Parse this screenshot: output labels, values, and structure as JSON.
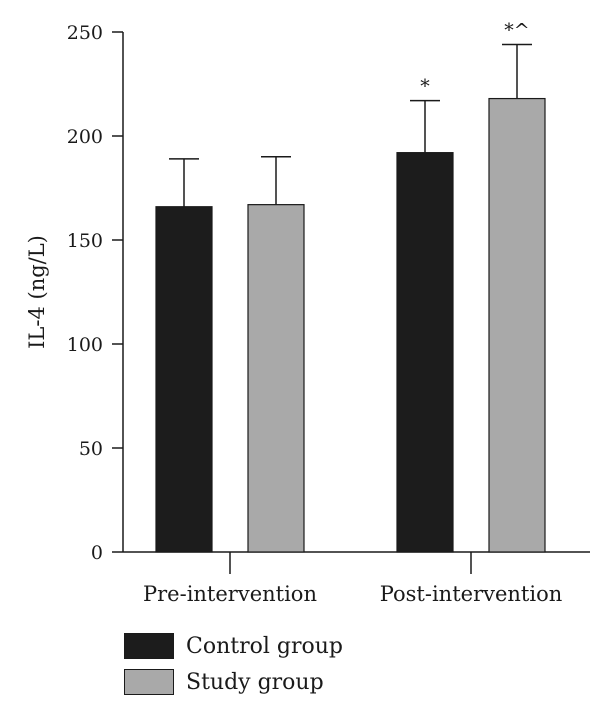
{
  "chart_data": {
    "type": "bar",
    "categories": [
      "Pre-intervention",
      "Post-intervention"
    ],
    "series": [
      {
        "name": "Control group",
        "color": "#1c1c1c",
        "values": [
          166,
          192
        ],
        "errors": [
          23,
          25
        ],
        "annotations": [
          "",
          "*"
        ]
      },
      {
        "name": "Study group",
        "color": "#a9a9a9",
        "values": [
          167,
          218
        ],
        "errors": [
          23,
          26
        ],
        "annotations": [
          "",
          "*^"
        ]
      }
    ],
    "ylabel": "IL-4 (ng/L)",
    "xlabel": "",
    "ylim": [
      0,
      250
    ],
    "yticks": [
      0,
      50,
      100,
      150,
      200,
      250
    ],
    "grid": false,
    "legend_position": "bottom-left"
  }
}
